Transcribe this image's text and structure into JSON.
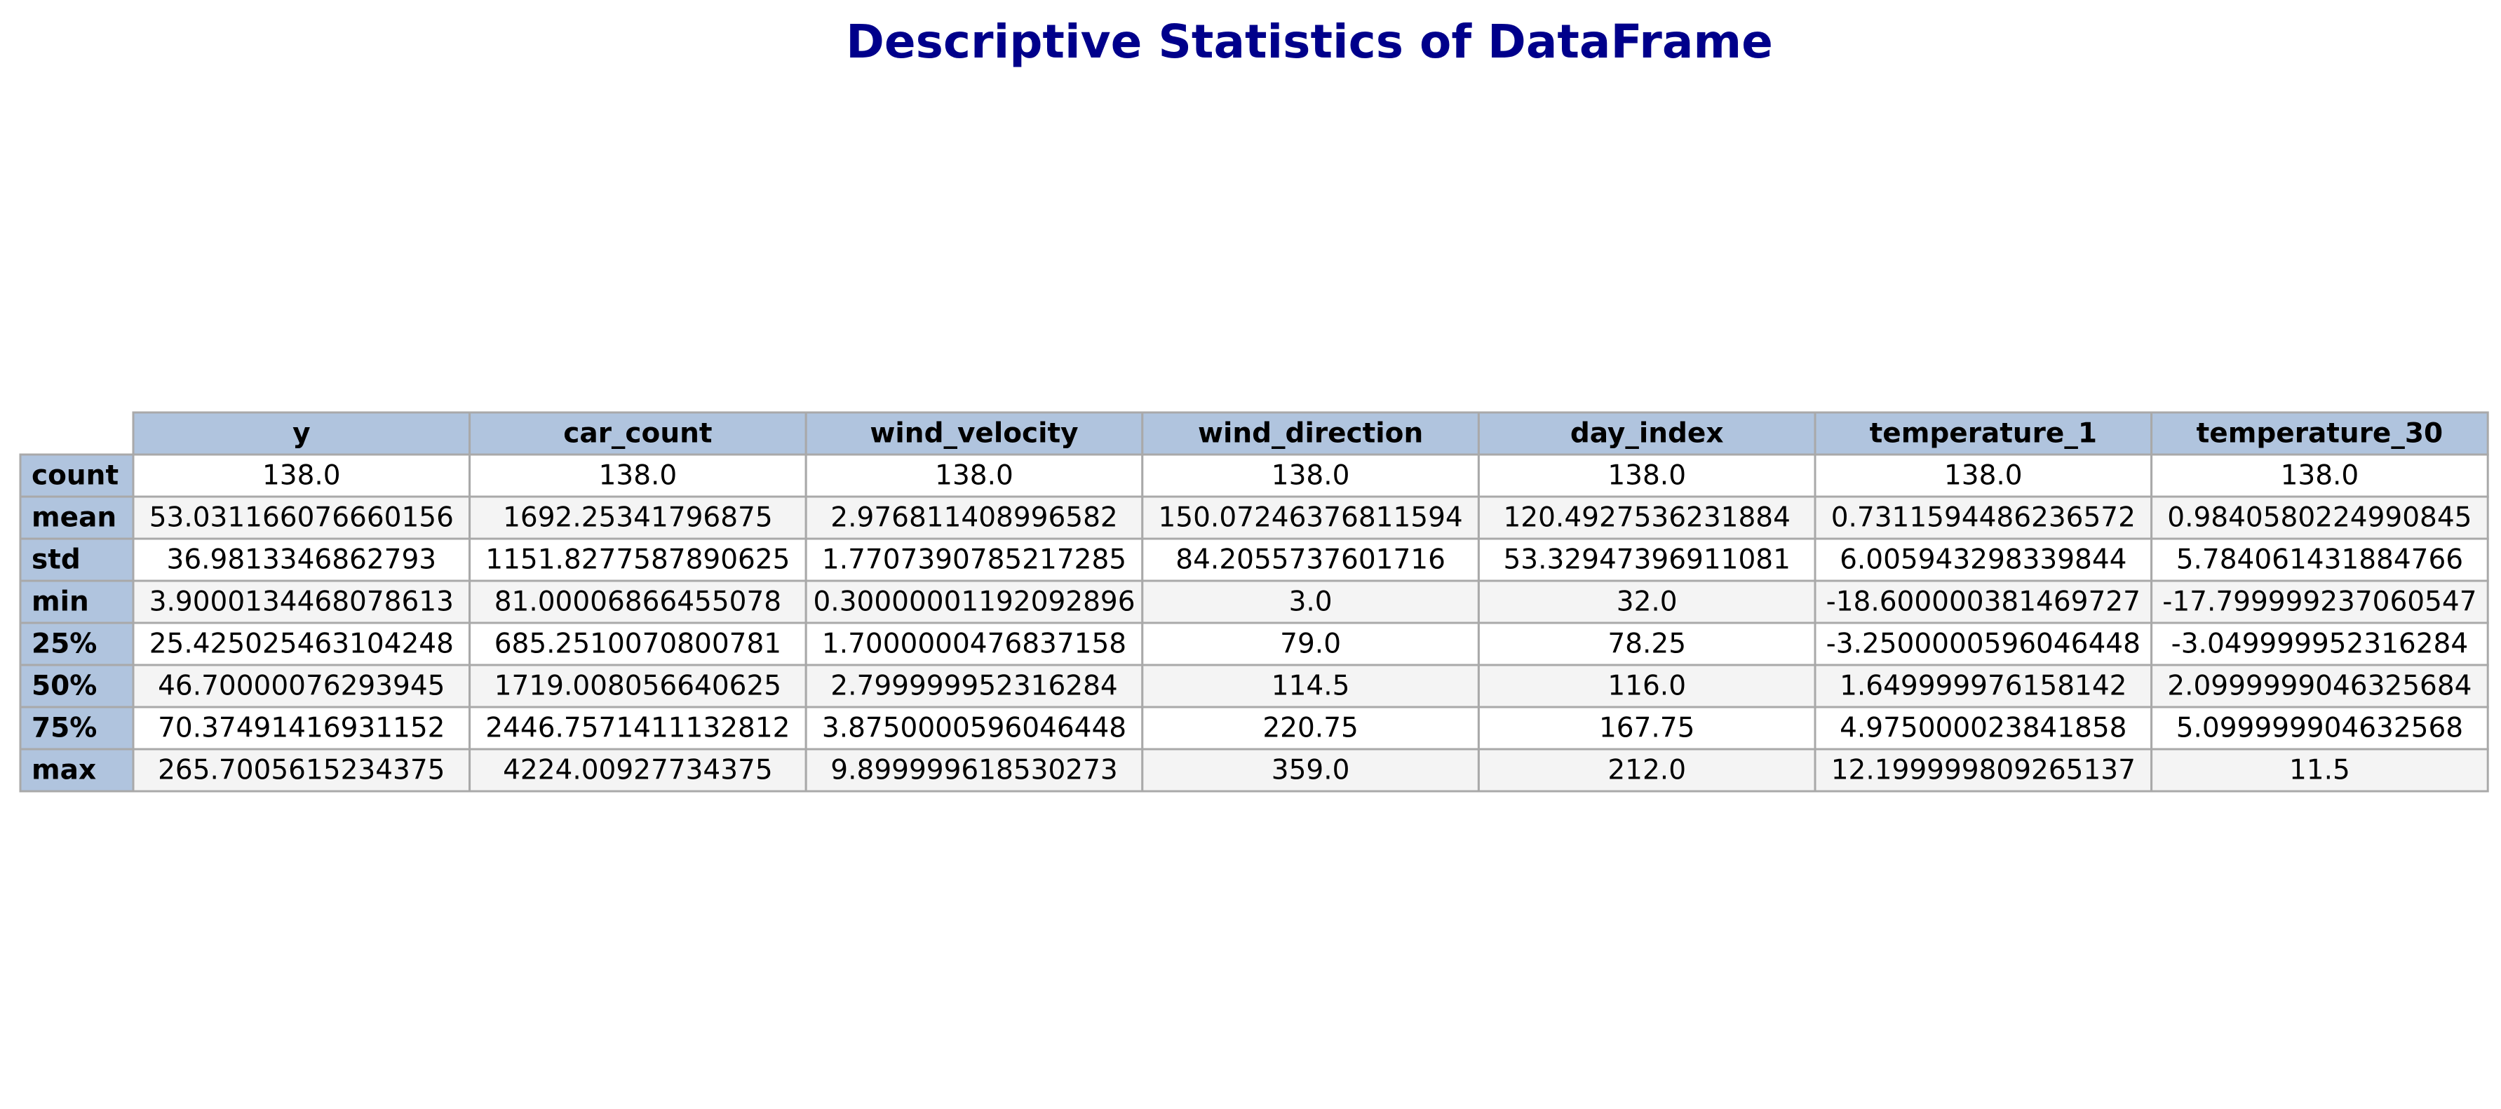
{
  "chart_data": {
    "type": "table",
    "title": "Descriptive Statistics of DataFrame",
    "columns": [
      "y",
      "car_count",
      "wind_velocity",
      "wind_direction",
      "day_index",
      "temperature_1",
      "temperature_30"
    ],
    "row_labels": [
      "count",
      "mean",
      "std",
      "min",
      "25%",
      "50%",
      "75%",
      "max"
    ],
    "rows": [
      [
        "138.0",
        "138.0",
        "138.0",
        "138.0",
        "138.0",
        "138.0",
        "138.0"
      ],
      [
        "53.031166076660156",
        "1692.25341796875",
        "2.976811408996582",
        "150.07246376811594",
        "120.4927536231884",
        "0.7311594486236572",
        "0.9840580224990845"
      ],
      [
        "36.9813346862793",
        "1151.8277587890625",
        "1.7707390785217285",
        "84.2055737601716",
        "53.32947396911081",
        "6.005943298339844",
        "5.784061431884766"
      ],
      [
        "3.9000134468078613",
        "81.00006866455078",
        "0.30000001192092896",
        "3.0",
        "32.0",
        "-18.600000381469727",
        "-17.799999237060547"
      ],
      [
        "25.425025463104248",
        "685.2510070800781",
        "1.7000000476837158",
        "79.0",
        "78.25",
        "-3.2500000596046448",
        "-3.049999952316284"
      ],
      [
        "46.70000076293945",
        "1719.008056640625",
        "2.799999952316284",
        "114.5",
        "116.0",
        "1.649999976158142",
        "2.0999999046325684"
      ],
      [
        "70.37491416931152",
        "2446.7571411132812",
        "3.8750000596046448",
        "220.75",
        "167.75",
        "4.975000023841858",
        "5.099999904632568"
      ],
      [
        "265.7005615234375",
        "4224.00927734375",
        "9.899999618530273",
        "359.0",
        "212.0",
        "12.199999809265137",
        "11.5"
      ]
    ]
  },
  "colors": {
    "header_bg": "#b0c4de",
    "row_even_bg": "#ffffff",
    "row_odd_bg": "#f4f4f4",
    "border": "#a9a9a9",
    "title": "#00008b"
  }
}
